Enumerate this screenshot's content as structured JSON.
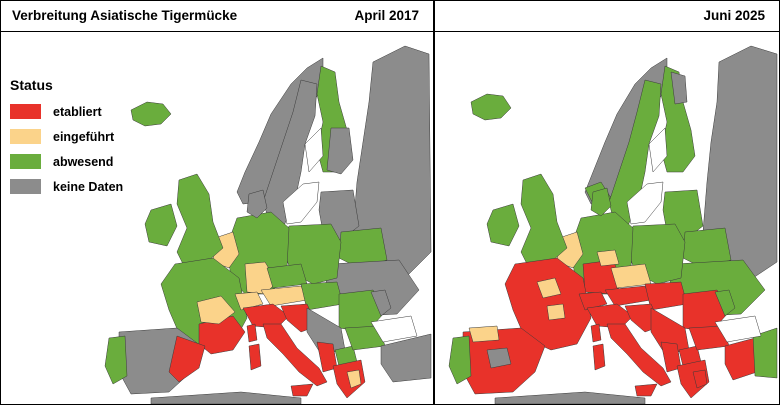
{
  "left_panel": {
    "title": "Verbreitung Asiatische Tigermücke",
    "date": "April 2017"
  },
  "right_panel": {
    "date": "Juni 2025"
  },
  "legend": {
    "title": "Status",
    "items": [
      {
        "label": "etabliert",
        "color": "#e8322a"
      },
      {
        "label": "eingeführt",
        "color": "#fbd38a"
      },
      {
        "label": "abwesend",
        "color": "#6aad3d"
      },
      {
        "label": "keine Daten",
        "color": "#8c8c8c"
      }
    ]
  },
  "colors": {
    "sea": "#ffffff",
    "border": "#3a3a3a"
  }
}
